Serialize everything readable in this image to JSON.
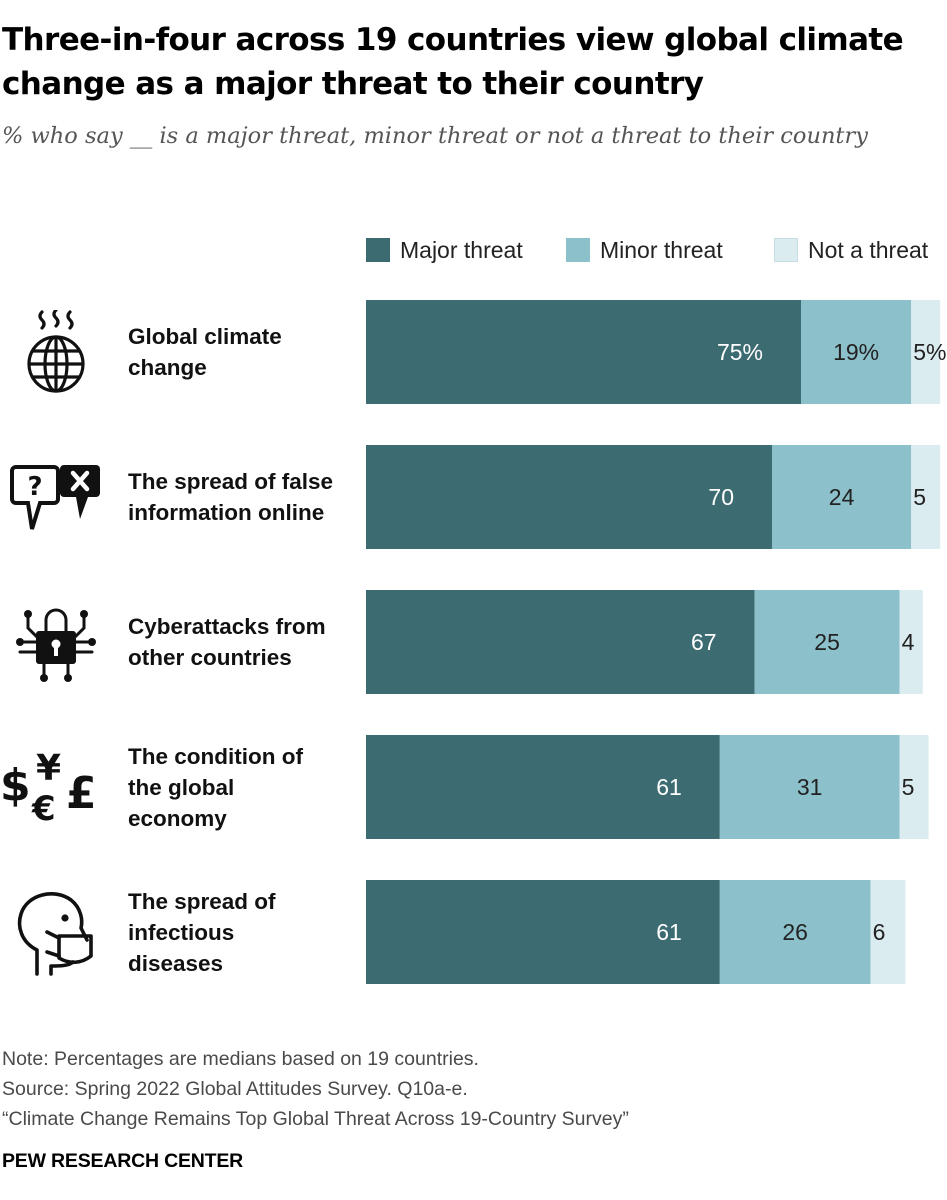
{
  "title": "Three-in-four across 19 countries view global climate change as a major threat to their country",
  "subtitle": "% who say __ is a major threat, minor threat or not a threat to their country",
  "colors": {
    "major": "#3c6b72",
    "minor": "#8cc0ca",
    "not": "#dbecf0",
    "text_dark": "#ffffff",
    "text_light": "#222222"
  },
  "chart_data": {
    "type": "bar",
    "orientation": "horizontal",
    "stacked": true,
    "legend_position": "top",
    "categories": [
      "Global climate change",
      "The spread of false information online",
      "Cyberattacks from other countries",
      "The condition of the global economy",
      "The spread of infectious diseases"
    ],
    "series": [
      {
        "name": "Major threat",
        "values": [
          75,
          70,
          67,
          61,
          61
        ],
        "labels": [
          "75%",
          "70",
          "67",
          "61",
          "61"
        ]
      },
      {
        "name": "Minor threat",
        "values": [
          19,
          24,
          25,
          31,
          26
        ],
        "labels": [
          "19%",
          "24",
          "25",
          "31",
          "26"
        ]
      },
      {
        "name": "Not a threat",
        "values": [
          5,
          5,
          4,
          5,
          6
        ],
        "labels": [
          "5%",
          "5",
          "4",
          "5",
          "6"
        ]
      }
    ]
  },
  "rows": [
    {
      "label_lines": [
        "Global climate",
        "change"
      ],
      "icon": "globe-heat-icon"
    },
    {
      "label_lines": [
        "The spread of false",
        "information online"
      ],
      "icon": "speech-bubbles-question-icon"
    },
    {
      "label_lines": [
        "Cyberattacks from",
        "other countries"
      ],
      "icon": "circuit-lock-icon"
    },
    {
      "label_lines": [
        "The condition of",
        "the global",
        "economy"
      ],
      "icon": "currency-symbols-icon"
    },
    {
      "label_lines": [
        "The spread of",
        "infectious",
        "diseases"
      ],
      "icon": "masked-head-icon"
    }
  ],
  "notes": {
    "note": "Note: Percentages are medians based on 19 countries.",
    "source": "Source: Spring 2022 Global Attitudes Survey. Q10a-e.",
    "report": "“Climate Change Remains Top Global Threat Across 19-Country Survey”",
    "org": "PEW RESEARCH CENTER"
  }
}
